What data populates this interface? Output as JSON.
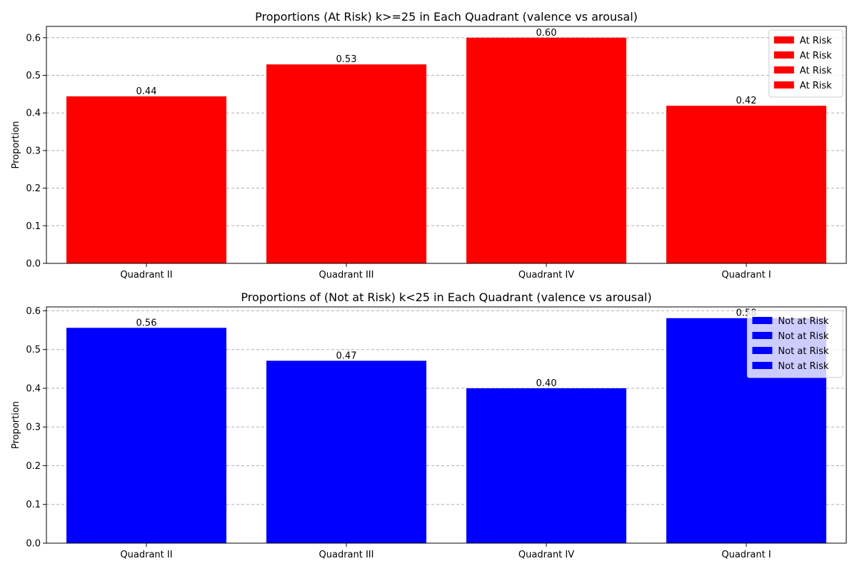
{
  "chart_data": [
    {
      "type": "bar",
      "title": "Proportions (At Risk) k>=25 in Each Quadrant (valence vs arousal)",
      "xlabel": "",
      "ylabel": "Proportion",
      "categories": [
        "Quadrant II",
        "Quadrant III",
        "Quadrant IV",
        "Quadrant I"
      ],
      "values": [
        0.444,
        0.529,
        0.6,
        0.419
      ],
      "value_labels": [
        "0.44",
        "0.53",
        "0.60",
        "0.42"
      ],
      "ylim": [
        0,
        0.63
      ],
      "yticks": [
        0.0,
        0.1,
        0.2,
        0.3,
        0.4,
        0.5,
        0.6
      ],
      "ytick_labels": [
        "0.0",
        "0.1",
        "0.2",
        "0.3",
        "0.4",
        "0.5",
        "0.6"
      ],
      "color": "#ff0000",
      "grid": "y-dashed",
      "legend_position": "top-right",
      "legend": [
        "At Risk",
        "At Risk",
        "At Risk",
        "At Risk"
      ]
    },
    {
      "type": "bar",
      "title": "Proportions of (Not at Risk) k<25 in Each Quadrant (valence vs arousal)",
      "xlabel": "",
      "ylabel": "Proportion",
      "categories": [
        "Quadrant II",
        "Quadrant III",
        "Quadrant IV",
        "Quadrant I"
      ],
      "values": [
        0.556,
        0.471,
        0.4,
        0.581
      ],
      "value_labels": [
        "0.56",
        "0.47",
        "0.40",
        "0.58"
      ],
      "ylim": [
        0,
        0.61
      ],
      "yticks": [
        0.0,
        0.1,
        0.2,
        0.3,
        0.4,
        0.5,
        0.6
      ],
      "ytick_labels": [
        "0.0",
        "0.1",
        "0.2",
        "0.3",
        "0.4",
        "0.5",
        "0.6"
      ],
      "color": "#0000ff",
      "grid": "y-dashed",
      "legend_position": "top-right",
      "legend": [
        "Not at Risk",
        "Not at Risk",
        "Not at Risk",
        "Not at Risk"
      ]
    }
  ]
}
